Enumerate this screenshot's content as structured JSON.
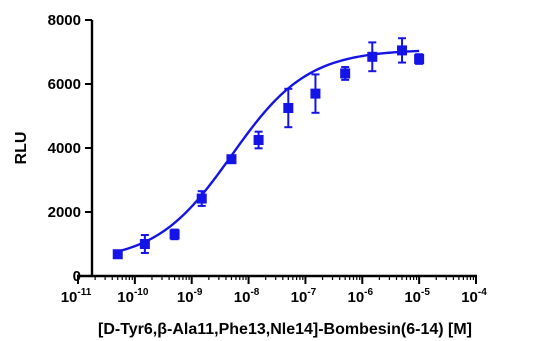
{
  "chart_data": {
    "type": "scatter",
    "title": "",
    "xlabel": "[D-Tyr6,β-Ala11,Phe13,Nle14]-Bombesin(6-14) [M]",
    "ylabel": "RLU",
    "xscale": "log",
    "xlim": [
      1e-11,
      0.0001
    ],
    "ylim": [
      0,
      8000
    ],
    "yticks": [
      0,
      2000,
      4000,
      6000,
      8000
    ],
    "xticks": [
      {
        "base": "10",
        "exp": "-11"
      },
      {
        "base": "10",
        "exp": "-10"
      },
      {
        "base": "10",
        "exp": "-9"
      },
      {
        "base": "10",
        "exp": "-8"
      },
      {
        "base": "10",
        "exp": "-7"
      },
      {
        "base": "10",
        "exp": "-6"
      },
      {
        "base": "10",
        "exp": "-5"
      },
      {
        "base": "10",
        "exp": "-4"
      }
    ],
    "grid": false,
    "series": [
      {
        "color": "#1414e6",
        "marker": "square",
        "points": [
          {
            "x": 5e-11,
            "y": 680,
            "err": 40
          },
          {
            "x": 1.5e-10,
            "y": 1000,
            "err": 280
          },
          {
            "x": 5e-10,
            "y": 1300,
            "err": 150
          },
          {
            "x": 1.5e-09,
            "y": 2420,
            "err": 230
          },
          {
            "x": 5e-09,
            "y": 3650,
            "err": 60
          },
          {
            "x": 1.5e-08,
            "y": 4250,
            "err": 260
          },
          {
            "x": 5e-08,
            "y": 5250,
            "err": 600
          },
          {
            "x": 1.5e-07,
            "y": 5700,
            "err": 600
          },
          {
            "x": 5e-07,
            "y": 6330,
            "err": 200
          },
          {
            "x": 1.5e-06,
            "y": 6850,
            "err": 450
          },
          {
            "x": 5e-06,
            "y": 7050,
            "err": 380
          },
          {
            "x": 1e-05,
            "y": 6780,
            "err": 150
          }
        ],
        "fit": {
          "model": "four-parameter logistic",
          "bottom": 450,
          "top": 7080,
          "logEC50": -8.3,
          "hill": 0.65
        }
      }
    ]
  }
}
